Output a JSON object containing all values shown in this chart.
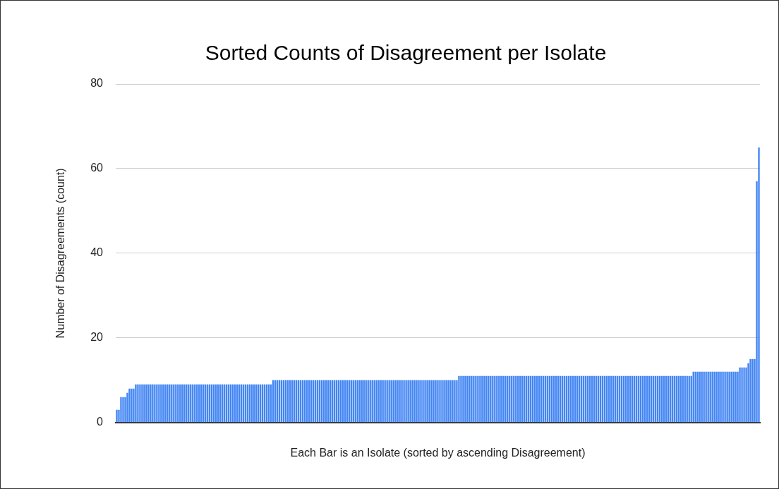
{
  "chart_data": {
    "type": "bar",
    "title": "Sorted Counts of Disagreement per Isolate",
    "xlabel": "Each Bar is an Isolate (sorted by ascending Disagreement)",
    "ylabel": "Number of Disagreements (count)",
    "categories": [
      null,
      null,
      null,
      null,
      null,
      null,
      null,
      null,
      null,
      null,
      null,
      null,
      null,
      null,
      null,
      null,
      null,
      null,
      null,
      null,
      null,
      null,
      null,
      null,
      null,
      null,
      null,
      null,
      null,
      null,
      null,
      null,
      null,
      null,
      null,
      null,
      null,
      null,
      null,
      null,
      null,
      null,
      null,
      null,
      null,
      null,
      null,
      null,
      null,
      null,
      null,
      null,
      null,
      null,
      null,
      null,
      null,
      null,
      null,
      null,
      null,
      null,
      null,
      null,
      null,
      null,
      null,
      null,
      null,
      null,
      null,
      null,
      null,
      null,
      null,
      null,
      null,
      null,
      null,
      null,
      null,
      null,
      null,
      null,
      null,
      null,
      null,
      null,
      null,
      null,
      null,
      null,
      null,
      null,
      null,
      null,
      null,
      null,
      null,
      null,
      null,
      null,
      null,
      null,
      null,
      null,
      null,
      null,
      null,
      null,
      null,
      null,
      null,
      null,
      null,
      null,
      null,
      null,
      null,
      null,
      null,
      null,
      null,
      null,
      null,
      null,
      null,
      null,
      null,
      null,
      null,
      null,
      null,
      null,
      null,
      null,
      null,
      null,
      null,
      null,
      null,
      null,
      null,
      null,
      null,
      null,
      null,
      null,
      null,
      null,
      null,
      null,
      null,
      null,
      null,
      null,
      null,
      null,
      null,
      null,
      null,
      null,
      null,
      null,
      null,
      null,
      null,
      null,
      null,
      null,
      null,
      null,
      null,
      null,
      null,
      null,
      null,
      null,
      null,
      null,
      null,
      null,
      null,
      null,
      null,
      null,
      null,
      null,
      null,
      null,
      null,
      null,
      null,
      null,
      null,
      null,
      null,
      null,
      null,
      null,
      null,
      null,
      null,
      null,
      null,
      null,
      null,
      null,
      null,
      null,
      null,
      null,
      null,
      null,
      null,
      null,
      null,
      null,
      null,
      null,
      null,
      null,
      null,
      null,
      null,
      null,
      null,
      null,
      null,
      null,
      null,
      null,
      null,
      null,
      null,
      null,
      null,
      null,
      null,
      null,
      null,
      null,
      null,
      null,
      null,
      null,
      null,
      null,
      null,
      null,
      null,
      null,
      null,
      null,
      null,
      null,
      null,
      null,
      null,
      null,
      null,
      null,
      null,
      null,
      null,
      null,
      null,
      null,
      null,
      null,
      null,
      null,
      null,
      null,
      null,
      null,
      null,
      null,
      null,
      null,
      null,
      null,
      null,
      null,
      null,
      null,
      null,
      null,
      null,
      null,
      null,
      null,
      null,
      null,
      null,
      null,
      null,
      null,
      null,
      null,
      null,
      null,
      null,
      null,
      null
    ],
    "values": [
      3,
      3,
      6,
      6,
      6,
      7,
      8,
      8,
      8,
      9,
      9,
      9,
      9,
      9,
      9,
      9,
      9,
      9,
      9,
      9,
      9,
      9,
      9,
      9,
      9,
      9,
      9,
      9,
      9,
      9,
      9,
      9,
      9,
      9,
      9,
      9,
      9,
      9,
      9,
      9,
      9,
      9,
      9,
      9,
      9,
      9,
      9,
      9,
      9,
      9,
      9,
      9,
      9,
      9,
      9,
      9,
      9,
      9,
      9,
      9,
      9,
      9,
      9,
      9,
      9,
      9,
      9,
      9,
      9,
      9,
      9,
      9,
      9,
      9,
      10,
      10,
      10,
      10,
      10,
      10,
      10,
      10,
      10,
      10,
      10,
      10,
      10,
      10,
      10,
      10,
      10,
      10,
      10,
      10,
      10,
      10,
      10,
      10,
      10,
      10,
      10,
      10,
      10,
      10,
      10,
      10,
      10,
      10,
      10,
      10,
      10,
      10,
      10,
      10,
      10,
      10,
      10,
      10,
      10,
      10,
      10,
      10,
      10,
      10,
      10,
      10,
      10,
      10,
      10,
      10,
      10,
      10,
      10,
      10,
      10,
      10,
      10,
      10,
      10,
      10,
      10,
      10,
      10,
      10,
      10,
      10,
      10,
      10,
      10,
      10,
      10,
      10,
      10,
      10,
      10,
      10,
      10,
      10,
      10,
      10,
      10,
      10,
      11,
      11,
      11,
      11,
      11,
      11,
      11,
      11,
      11,
      11,
      11,
      11,
      11,
      11,
      11,
      11,
      11,
      11,
      11,
      11,
      11,
      11,
      11,
      11,
      11,
      11,
      11,
      11,
      11,
      11,
      11,
      11,
      11,
      11,
      11,
      11,
      11,
      11,
      11,
      11,
      11,
      11,
      11,
      11,
      11,
      11,
      11,
      11,
      11,
      11,
      11,
      11,
      11,
      11,
      11,
      11,
      11,
      11,
      11,
      11,
      11,
      11,
      11,
      11,
      11,
      11,
      11,
      11,
      11,
      11,
      11,
      11,
      11,
      11,
      11,
      11,
      11,
      11,
      11,
      11,
      11,
      11,
      11,
      11,
      11,
      11,
      11,
      11,
      11,
      11,
      11,
      11,
      11,
      11,
      11,
      11,
      11,
      11,
      11,
      11,
      11,
      11,
      11,
      11,
      11,
      11,
      11,
      11,
      11,
      11,
      11,
      12,
      12,
      12,
      12,
      12,
      12,
      12,
      12,
      12,
      12,
      12,
      12,
      12,
      12,
      12,
      12,
      12,
      12,
      12,
      12,
      12,
      12,
      13,
      13,
      13,
      13,
      14,
      15,
      15,
      15,
      57,
      65
    ],
    "color": "#4285f4",
    "ylim": [
      0,
      80
    ],
    "yticks": [
      0,
      20,
      40,
      60,
      80
    ],
    "grid": "y"
  }
}
